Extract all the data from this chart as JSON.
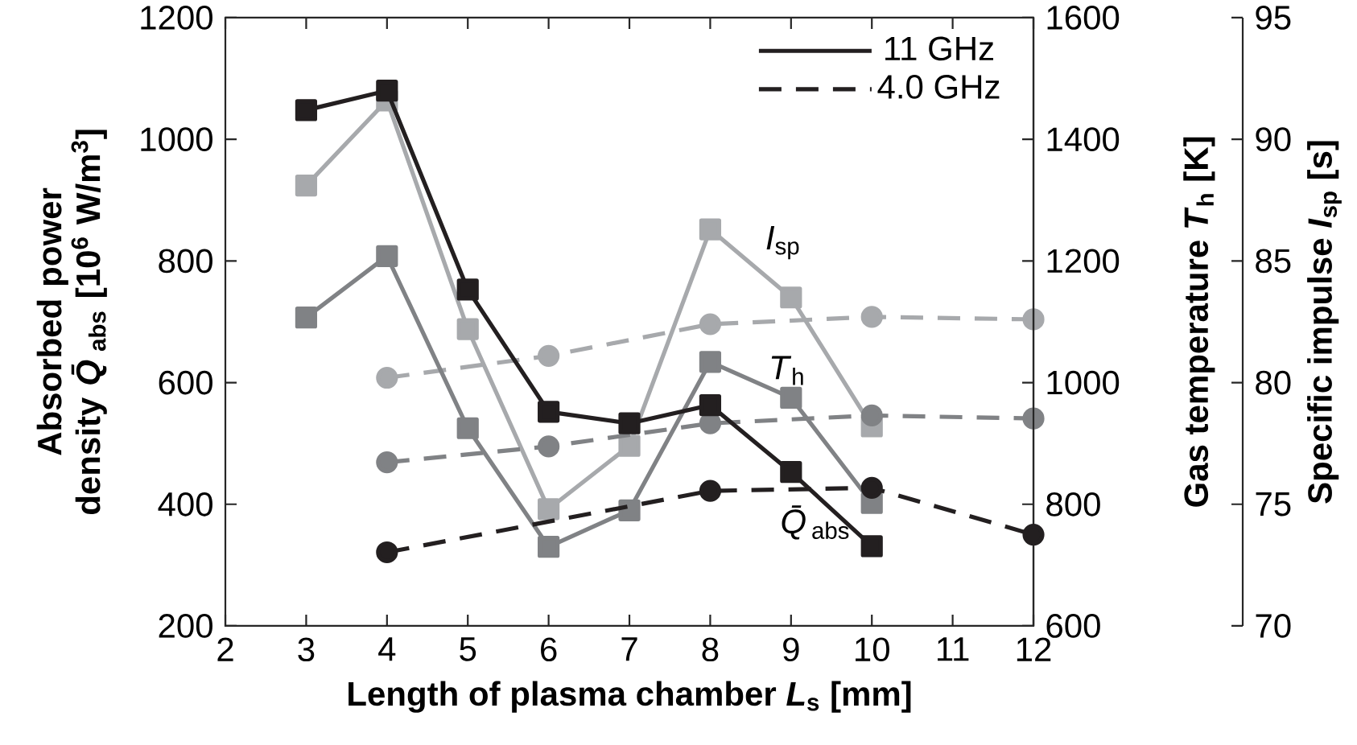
{
  "chart_data": {
    "type": "line",
    "xlabel": "Length of plasma chamber *L*$_{s}$ [mm]",
    "ylabel": "Absorbed power density *Q̄*$_{abs}$ [10$^{6}$ W/m$^{3}$]",
    "y2label": "Gas temperature *T*$_{h}$ [K]",
    "y3label": "Specific impulse *I*$_{sp}$ [s]",
    "xlim": [
      2,
      12
    ],
    "xticks": [
      2,
      3,
      4,
      5,
      6,
      7,
      8,
      9,
      10,
      11,
      12
    ],
    "ylim": [
      200,
      1200
    ],
    "yticks": [
      200,
      400,
      600,
      800,
      1000,
      1200
    ],
    "y2lim": [
      600,
      1600
    ],
    "y2ticks": [
      600,
      800,
      1000,
      1200,
      1400,
      1600
    ],
    "y3lim": [
      70,
      95
    ],
    "y3ticks": [
      70,
      75,
      80,
      85,
      90,
      95
    ],
    "grid": false,
    "legend": "top right",
    "annotations": [
      "*I*$_{sp}$",
      "*T*$_{h}$",
      "*Q̄*$_{abs}$"
    ],
    "series": [
      {
        "axis": "y3",
        "color": "#a7a9ac",
        "marker": "circle",
        "line_style": "dashed",
        "x": [
          4,
          6,
          8,
          10,
          12
        ],
        "values": [
          80.2,
          81.1,
          82.4,
          82.7,
          82.6
        ]
      },
      {
        "axis": "y2",
        "color": "#808285",
        "marker": "circle",
        "line_style": "dashed",
        "x": [
          4,
          6,
          8,
          10,
          12
        ],
        "values": [
          869,
          895,
          933,
          946,
          941
        ]
      },
      {
        "axis": "y",
        "name": "4.0 GHz",
        "color": "#231f20",
        "marker": "circle",
        "line_style": "dashed",
        "x": [
          4,
          6,
          8,
          10,
          12
        ],
        "values": [
          321,
          null,
          422,
          427,
          350
        ]
      },
      {
        "axis": "y3",
        "color": "#a7a9ac",
        "marker": "square",
        "line_style": "solid",
        "x": [
          3,
          4,
          5,
          6,
          7,
          8,
          9,
          10
        ],
        "values": [
          88.1,
          91.6,
          82.2,
          74.8,
          77.4,
          86.3,
          83.5,
          78.2
        ]
      },
      {
        "axis": "y2",
        "color": "#808285",
        "marker": "square",
        "line_style": "solid",
        "x": [
          3,
          4,
          5,
          6,
          7,
          8,
          9,
          10
        ],
        "values": [
          1107,
          1208,
          925,
          730,
          790,
          1034,
          975,
          802
        ]
      },
      {
        "axis": "y",
        "name": "11 GHz",
        "color": "#231f20",
        "marker": "square",
        "line_style": "solid",
        "x": [
          3,
          4,
          5,
          6,
          7,
          8,
          9,
          10
        ],
        "values": [
          1048,
          1080,
          753,
          552,
          533,
          563,
          453,
          331
        ]
      }
    ]
  }
}
